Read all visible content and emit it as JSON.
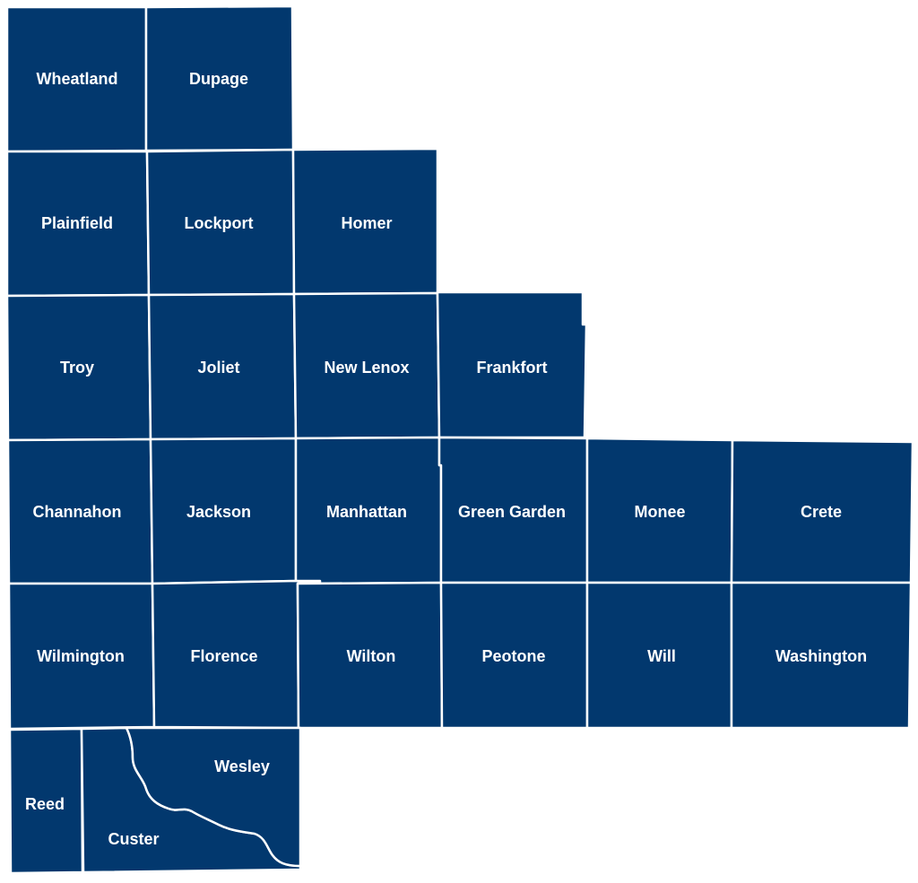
{
  "regions": [
    {
      "name": "Wheatland"
    },
    {
      "name": "Dupage"
    },
    {
      "name": "Plainfield"
    },
    {
      "name": "Lockport"
    },
    {
      "name": "Homer"
    },
    {
      "name": "Troy"
    },
    {
      "name": "Joliet"
    },
    {
      "name": "New Lenox"
    },
    {
      "name": "Frankfort"
    },
    {
      "name": "Channahon"
    },
    {
      "name": "Jackson"
    },
    {
      "name": "Manhattan"
    },
    {
      "name": "Green Garden"
    },
    {
      "name": "Monee"
    },
    {
      "name": "Crete"
    },
    {
      "name": "Wilmington"
    },
    {
      "name": "Florence"
    },
    {
      "name": "Wilton"
    },
    {
      "name": "Peotone"
    },
    {
      "name": "Will"
    },
    {
      "name": "Washington"
    },
    {
      "name": "Reed"
    },
    {
      "name": "Custer"
    },
    {
      "name": "Wesley"
    }
  ]
}
